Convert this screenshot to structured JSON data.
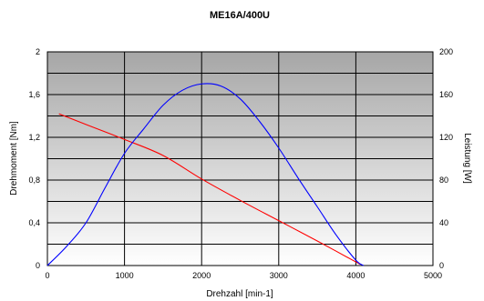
{
  "chart_data": {
    "type": "line",
    "title": "ME16A/400U",
    "xlabel": "Drehzahl [min-1]",
    "ylabel_left": "Drehmoment [Nm]",
    "ylabel_right": "Leistung [W]",
    "xlim": [
      0,
      5000
    ],
    "ylim_left": [
      0,
      2
    ],
    "ylim_right": [
      0,
      200
    ],
    "xticks": [
      "0",
      "1000",
      "2000",
      "3000",
      "4000",
      "5000"
    ],
    "yticks_left": [
      "0",
      "0,4",
      "0,8",
      "1,2",
      "1,6",
      "2"
    ],
    "yticks_right": [
      "0",
      "40",
      "80",
      "120",
      "160",
      "200"
    ],
    "grid": true,
    "series": [
      {
        "axis": "left",
        "color": "#ff0000",
        "x": [
          150,
          500,
          1000,
          1500,
          2000,
          2500,
          3000,
          3500,
          4060
        ],
        "y": [
          1.42,
          1.32,
          1.18,
          1.03,
          0.81,
          0.61,
          0.42,
          0.23,
          0.01
        ]
      },
      {
        "axis": "right",
        "color": "#0000ff",
        "x": [
          0,
          250,
          500,
          750,
          1000,
          1250,
          1500,
          1750,
          2000,
          2250,
          2500,
          2750,
          3000,
          3250,
          3500,
          3750,
          4000,
          4100
        ],
        "y": [
          0,
          18,
          40,
          73,
          105,
          128,
          150,
          164,
          170,
          168,
          156,
          135,
          110,
          82,
          55,
          28,
          5,
          0
        ]
      }
    ]
  }
}
